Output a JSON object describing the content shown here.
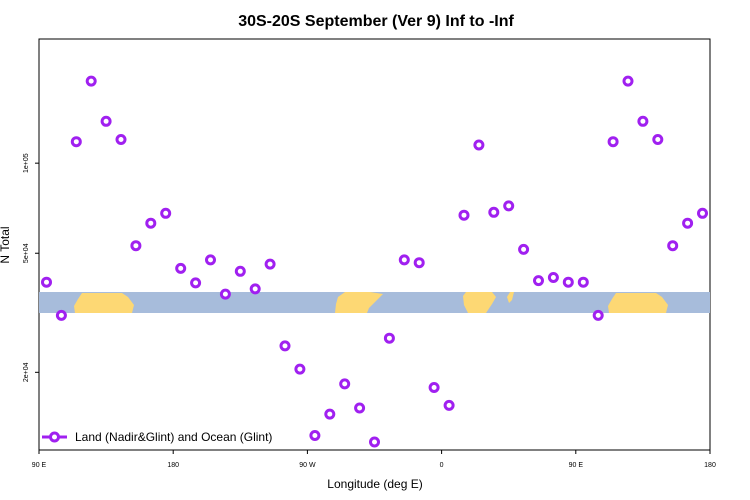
{
  "chart_data": {
    "type": "scatter",
    "title": "30S-20S September (Ver 9)   Inf to -Inf",
    "xlabel": "Longitude (deg E)",
    "ylabel": "N Total",
    "xlim": [
      -180,
      180
    ],
    "ylim": [
      11000,
      260000
    ],
    "y_scale": "log",
    "grid": false,
    "x_ticks": [
      {
        "value": -180,
        "label": "90 E"
      },
      {
        "value": -108,
        "label": "180"
      },
      {
        "value": -36,
        "label": "90 W"
      },
      {
        "value": 36,
        "label": "0"
      },
      {
        "value": 108,
        "label": "90 E"
      },
      {
        "value": 180,
        "label": "180"
      }
    ],
    "y_ticks": [
      {
        "value": 20000,
        "label": "2e+04"
      },
      {
        "value": 50000,
        "label": "5e+04"
      },
      {
        "value": 100000,
        "label": "1e+05"
      }
    ],
    "map_strip": {
      "ocean_color": "#a7bcdb",
      "land_color": "#fdd874"
    },
    "series": [
      {
        "name": "Land (Nadir&Glint) and Ocean (Glint)",
        "color": "#a020f0",
        "marker": "open-circle",
        "points": [
          {
            "x": -176,
            "y": 40000
          },
          {
            "x": -168,
            "y": 31000
          },
          {
            "x": -160,
            "y": 118000
          },
          {
            "x": -152,
            "y": 188000
          },
          {
            "x": -144,
            "y": 138000
          },
          {
            "x": -136,
            "y": 120000
          },
          {
            "x": -128,
            "y": 53000
          },
          {
            "x": -120,
            "y": 63000
          },
          {
            "x": -112,
            "y": 68000
          },
          {
            "x": -104,
            "y": 44500
          },
          {
            "x": -96,
            "y": 39800
          },
          {
            "x": -88,
            "y": 47500
          },
          {
            "x": -80,
            "y": 36500
          },
          {
            "x": -72,
            "y": 43500
          },
          {
            "x": -64,
            "y": 38000
          },
          {
            "x": -56,
            "y": 46000
          },
          {
            "x": -48,
            "y": 24500
          },
          {
            "x": -40,
            "y": 20500
          },
          {
            "x": -32,
            "y": 12300
          },
          {
            "x": -24,
            "y": 14500
          },
          {
            "x": -16,
            "y": 18300
          },
          {
            "x": -8,
            "y": 15200
          },
          {
            "x": 0,
            "y": 11700
          },
          {
            "x": 8,
            "y": 26000
          },
          {
            "x": 16,
            "y": 47500
          },
          {
            "x": 24,
            "y": 46500
          },
          {
            "x": 32,
            "y": 17800
          },
          {
            "x": 40,
            "y": 15500
          },
          {
            "x": 48,
            "y": 67000
          },
          {
            "x": 56,
            "y": 115000
          },
          {
            "x": 64,
            "y": 68500
          },
          {
            "x": 72,
            "y": 72000
          },
          {
            "x": 80,
            "y": 51500
          },
          {
            "x": 88,
            "y": 40500
          },
          {
            "x": 96,
            "y": 41500
          },
          {
            "x": 104,
            "y": 40000
          },
          {
            "x": 112,
            "y": 40000
          },
          {
            "x": 120,
            "y": 31000
          },
          {
            "x": 128,
            "y": 118000
          },
          {
            "x": 136,
            "y": 188000
          },
          {
            "x": 144,
            "y": 138000
          },
          {
            "x": 152,
            "y": 120000
          },
          {
            "x": 160,
            "y": 53000
          },
          {
            "x": 168,
            "y": 63000
          },
          {
            "x": 176,
            "y": 68000
          }
        ]
      }
    ],
    "legend_position": "bottom-left"
  }
}
